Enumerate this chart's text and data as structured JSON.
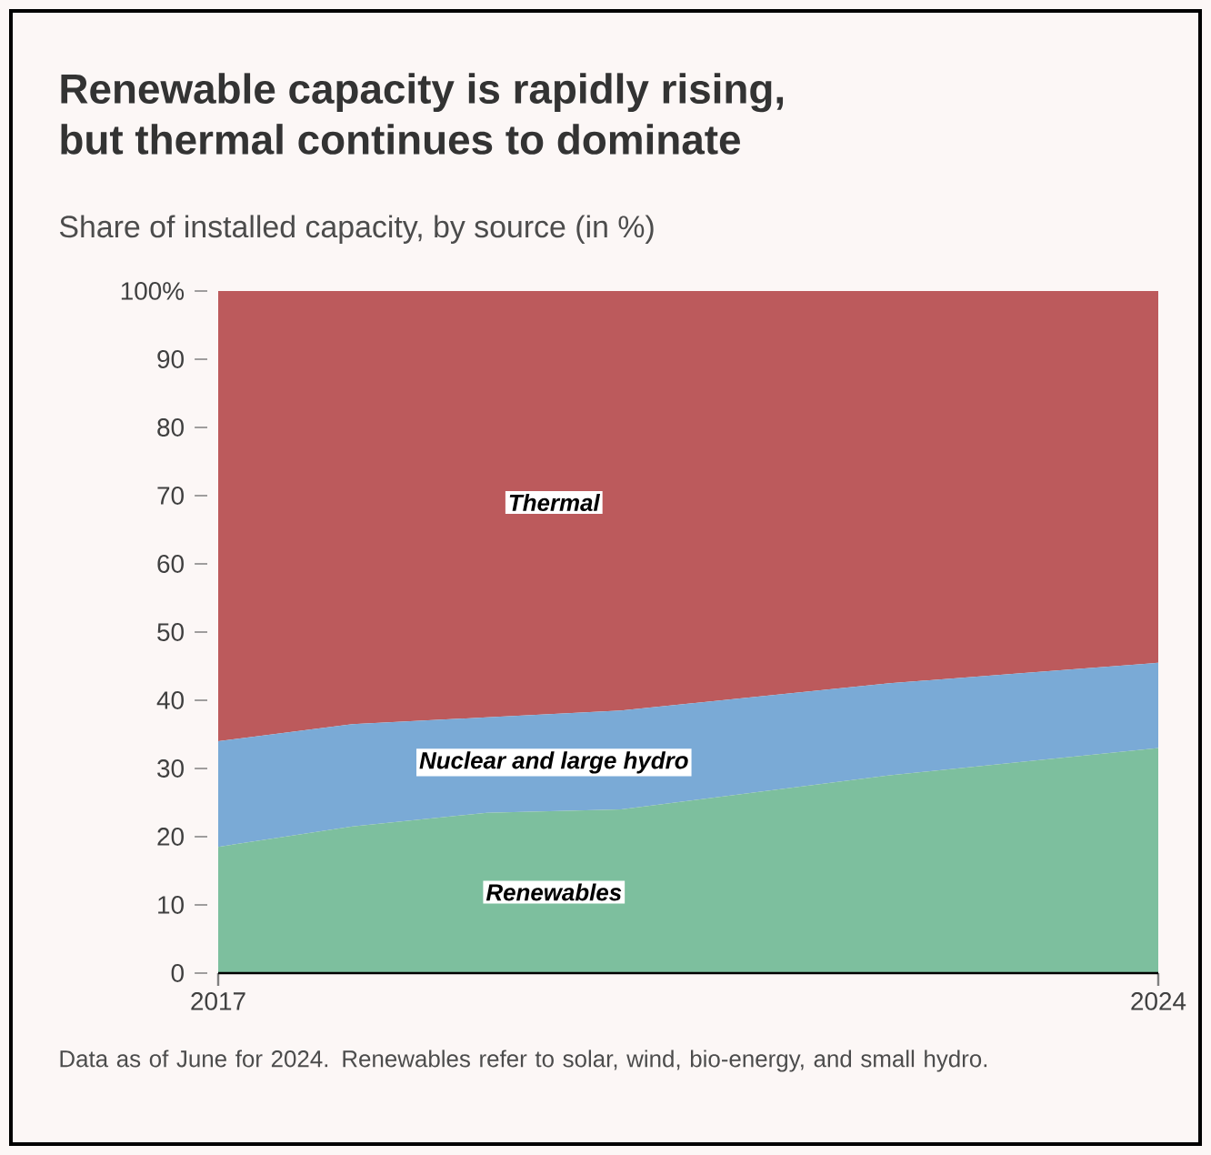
{
  "chart_data": {
    "type": "area",
    "stacked": true,
    "title": "Renewable capacity is rapidly rising,\nbut thermal continues to dominate",
    "subtitle": "Share of installed capacity, by source (in %)",
    "x": [
      2017,
      2018,
      2019,
      2020,
      2021,
      2022,
      2023,
      2024
    ],
    "xlim": [
      2017,
      2024
    ],
    "xticks": [
      2017,
      2024
    ],
    "ylim": [
      0,
      100
    ],
    "yticks": [
      0,
      10,
      20,
      30,
      40,
      50,
      60,
      70,
      80,
      90,
      {
        "value": 100,
        "label": "100%"
      }
    ],
    "series": [
      {
        "name": "Renewables",
        "color": "#7dbf9e",
        "values": [
          18.5,
          21.5,
          23.5,
          24,
          26.5,
          29,
          31,
          33
        ]
      },
      {
        "name": "Nuclear and large hydro",
        "color": "#7aaad6",
        "values": [
          15.5,
          15,
          14,
          14.5,
          14,
          13.5,
          13,
          12.5
        ]
      },
      {
        "name": "Thermal",
        "color": "#bc5a5c",
        "values": [
          66,
          63.5,
          62.5,
          61.5,
          59.5,
          57.5,
          56,
          54.5
        ]
      }
    ],
    "annotations": [
      "Data as of June for 2024. Renewables refer to solar, wind, bio-energy, and small hydro."
    ]
  }
}
